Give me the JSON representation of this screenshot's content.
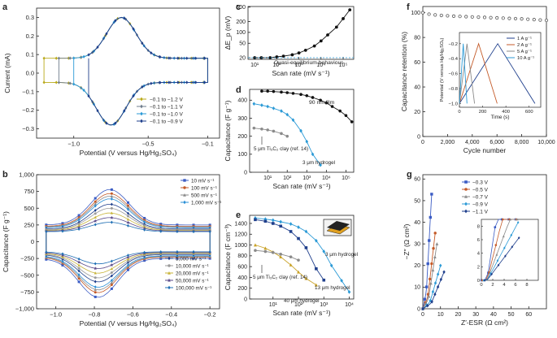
{
  "chart_data": [
    {
      "panel": "a",
      "type": "line",
      "xlabel": "Potential (V versus Hg/Hg₂SO₄)",
      "ylabel": "Current (mA)",
      "xlim": [
        -1.25,
        -0.02
      ],
      "ylim": [
        -0.35,
        0.35
      ],
      "xticks": [
        -1.0,
        -0.5,
        -0.1
      ],
      "xtick_labels": [
        "−1.0",
        "−0.5",
        "−0.1"
      ],
      "yticks": [
        -0.3,
        -0.2,
        -0.1,
        0.0,
        0.1,
        0.2,
        0.3
      ],
      "ytick_labels": [
        "−0.3",
        "−0.2",
        "−0.1",
        "0.0",
        "0.1",
        "0.2",
        "0.3"
      ],
      "legend": "bottom-right",
      "series": [
        {
          "name": "−0.1 to −1.2 V",
          "color": "#b9a91a",
          "marker": "diamond",
          "vmin": -1.2,
          "vmax": -0.1
        },
        {
          "name": "−0.1 to −1.1 V",
          "color": "#6f7d8c",
          "marker": "diamond",
          "vmin": -1.1,
          "vmax": -0.1
        },
        {
          "name": "−0.1 to −1.0 V",
          "color": "#2b9ad6",
          "marker": "diamond",
          "vmin": -1.0,
          "vmax": -0.1
        },
        {
          "name": "−0.1 to −0.9 V",
          "color": "#1f3f8c",
          "marker": "diamond",
          "vmin": -0.9,
          "vmax": -0.1
        }
      ],
      "peak_anodic": {
        "x": -0.68,
        "y": 0.3
      },
      "peak_cathodic": {
        "x": -0.75,
        "y": -0.28
      },
      "plateau_upper": 0.08,
      "plateau_lower": -0.05
    },
    {
      "panel": "b",
      "type": "line",
      "xlabel": "Potential (V versus Hg/Hg₂SO₄)",
      "ylabel": "Capacitance (F g⁻¹)",
      "xlim": [
        -1.1,
        -0.15
      ],
      "ylim": [
        -1000,
        1000
      ],
      "xticks": [
        -1.0,
        -0.8,
        -0.6,
        -0.4,
        -0.2
      ],
      "xtick_labels": [
        "−1.0",
        "−0.8",
        "−0.6",
        "−0.4",
        "−0.2"
      ],
      "yticks": [
        -1000,
        -750,
        -500,
        -250,
        0,
        250,
        500,
        750,
        1000
      ],
      "ytick_labels": [
        "−1,000",
        "−750",
        "−500",
        "−250",
        "0",
        "250",
        "500",
        "750",
        "1,000"
      ],
      "series": [
        {
          "name": "10 mV s⁻¹",
          "color": "#3b5cc4",
          "marker": "square",
          "peak": 780,
          "trough": -830,
          "plateau": 250
        },
        {
          "name": "100 mV s⁻¹",
          "color": "#c45a28",
          "marker": "circle",
          "peak": 720,
          "trough": -760,
          "plateau": 230
        },
        {
          "name": "500 mV s⁻¹",
          "color": "#8a8a8a",
          "marker": "triangle",
          "peak": 680,
          "trough": -720,
          "plateau": 220
        },
        {
          "name": "1,000 mV s⁻¹",
          "color": "#2a8fd6",
          "marker": "diamond",
          "peak": 640,
          "trough": -680,
          "plateau": 210
        },
        {
          "name": "5,000 mV s⁻¹",
          "color": "#1f3f8c",
          "marker": "diamond",
          "peak": 560,
          "trough": -600,
          "plateau": 190
        },
        {
          "name": "10,000 mV s⁻¹",
          "color": "#9a9a9a",
          "marker": "circle",
          "peak": 500,
          "trough": -540,
          "plateau": 180
        },
        {
          "name": "20,000 mV s⁻¹",
          "color": "#c8b43a",
          "marker": "triangle",
          "peak": 430,
          "trough": -470,
          "plateau": 170
        },
        {
          "name": "50,000 mV s⁻¹",
          "color": "#5a4a8a",
          "marker": "star",
          "peak": 360,
          "trough": -400,
          "plateau": 160
        },
        {
          "name": "100,000 mV s⁻¹",
          "color": "#1f6fb4",
          "marker": "diamond",
          "peak": 290,
          "trough": -330,
          "plateau": 150
        }
      ]
    },
    {
      "panel": "c",
      "type": "line",
      "xlabel": "Scan rate (mV s⁻¹)",
      "ylabel": "ΔE_p (mV)",
      "xscale": "log",
      "yscale": "log",
      "xlim": [
        5,
        300000
      ],
      "ylim": [
        18,
        520
      ],
      "xticks": [
        10,
        100,
        1000,
        10000,
        100000
      ],
      "xtick_labels": [
        "10¹",
        "10²",
        "10³",
        "10⁴",
        "10⁵"
      ],
      "yticks": [
        20,
        50,
        100,
        200,
        500
      ],
      "ytick_labels": [
        "20",
        "50",
        "100",
        "200",
        "500"
      ],
      "annotation": "Quasi-equilibrium behaviour",
      "series": [
        {
          "name": "",
          "color": "#111111",
          "marker": "circle",
          "x": [
            10,
            20,
            50,
            100,
            200,
            500,
            1000,
            2000,
            5000,
            10000,
            20000,
            50000,
            100000,
            200000
          ],
          "y": [
            20,
            20,
            20,
            21,
            22,
            24,
            27,
            32,
            42,
            58,
            85,
            140,
            240,
            420
          ]
        }
      ]
    },
    {
      "panel": "d",
      "type": "line",
      "xlabel": "Scan rate (mV s⁻¹)",
      "ylabel": "Capacitance (F g⁻¹)",
      "xscale": "log",
      "xlim": [
        1.2,
        250000
      ],
      "ylim": [
        0,
        460
      ],
      "xticks": [
        10,
        100,
        1000,
        10000,
        100000
      ],
      "xtick_labels": [
        "10¹",
        "10²",
        "10³",
        "10⁴",
        "10⁵"
      ],
      "yticks": [
        0,
        100,
        200,
        300,
        400
      ],
      "ytick_labels": [
        "0",
        "100",
        "200",
        "300",
        "400"
      ],
      "annotations": [
        "90 nm film",
        "5 μm Ti₃C₂ clay (ref. 14)",
        "3 μm hydrogel"
      ],
      "series": [
        {
          "name": "90 nm film",
          "color": "#111111",
          "marker": "circle",
          "x": [
            5,
            10,
            20,
            50,
            100,
            200,
            500,
            1000,
            2000,
            5000,
            10000,
            20000,
            50000,
            100000,
            200000
          ],
          "y": [
            450,
            450,
            448,
            445,
            442,
            438,
            432,
            425,
            415,
            400,
            385,
            365,
            340,
            315,
            280
          ]
        },
        {
          "name": "3 μm hydrogel",
          "color": "#2b9ad6",
          "marker": "diamond",
          "x": [
            2,
            5,
            10,
            20,
            50,
            100,
            200,
            500,
            1000,
            2000,
            5000
          ],
          "y": [
            380,
            372,
            365,
            355,
            340,
            320,
            290,
            230,
            170,
            100,
            40
          ]
        },
        {
          "name": "5 μm Ti₃C₂ clay",
          "color": "#8a8a8a",
          "marker": "circle",
          "x": [
            2,
            5,
            10,
            20,
            50,
            100
          ],
          "y": [
            245,
            240,
            235,
            228,
            215,
            200
          ]
        }
      ]
    },
    {
      "panel": "e",
      "type": "line",
      "xlabel": "Scan rate (mV s⁻¹)",
      "ylabel": "Capacitance (F cm⁻³)",
      "xscale": "log",
      "xlim": [
        1.2,
        15000
      ],
      "ylim": [
        0,
        1550
      ],
      "xticks": [
        10,
        100,
        1000,
        10000
      ],
      "xtick_labels": [
        "10¹",
        "10²",
        "10³",
        "10⁴"
      ],
      "yticks": [
        0,
        200,
        400,
        600,
        800,
        1000,
        1200,
        1400
      ],
      "ytick_labels": [
        "0",
        "200",
        "400",
        "600",
        "800",
        "1000",
        "1200",
        "1400"
      ],
      "annotations": [
        "3 μm hydrogel",
        "13 μm hydrogel",
        "40 μm hydrogel",
        "5 μm Ti₃C₂ clay (ref. 14)"
      ],
      "series": [
        {
          "name": "3 μm hydrogel",
          "color": "#2b9ad6",
          "marker": "diamond",
          "x": [
            2,
            5,
            10,
            20,
            50,
            100,
            200,
            500,
            1000,
            2000,
            5000,
            10000
          ],
          "y": [
            1500,
            1480,
            1460,
            1430,
            1390,
            1330,
            1250,
            1080,
            880,
            620,
            340,
            130
          ]
        },
        {
          "name": "13 μm hydrogel",
          "color": "#1f3f8c",
          "marker": "square",
          "x": [
            2,
            5,
            10,
            20,
            50,
            100,
            200,
            500,
            1000
          ],
          "y": [
            1470,
            1440,
            1400,
            1350,
            1250,
            1120,
            950,
            560,
            350
          ]
        },
        {
          "name": "40 μm hydrogel",
          "color": "#c9a227",
          "marker": "triangle",
          "x": [
            2,
            5,
            10,
            20,
            50,
            100,
            200,
            500
          ],
          "y": [
            1000,
            940,
            870,
            780,
            630,
            500,
            380,
            260
          ]
        },
        {
          "name": "5 μm Ti₃C₂ clay",
          "color": "#8a8a8a",
          "marker": "circle",
          "x": [
            2,
            5,
            10,
            20,
            50,
            100
          ],
          "y": [
            900,
            880,
            860,
            830,
            780,
            720
          ]
        }
      ]
    },
    {
      "panel": "f",
      "type": "scatter",
      "xlabel": "Cycle number",
      "ylabel": "Capacitance retention (%)",
      "xlim": [
        0,
        10000
      ],
      "ylim": [
        0,
        105
      ],
      "xticks": [
        0,
        2000,
        4000,
        6000,
        8000,
        10000
      ],
      "xtick_labels": [
        "0",
        "2,000",
        "4,000",
        "6,000",
        "8,000",
        "10,000"
      ],
      "yticks": [
        0,
        20,
        40,
        60,
        80,
        100
      ],
      "ytick_labels": [
        "0",
        "20",
        "40",
        "60",
        "80",
        "100"
      ],
      "series": [
        {
          "name": "",
          "color": "#555555",
          "marker": "open-circle",
          "x": [
            0,
            500,
            1000,
            1500,
            2000,
            2500,
            3000,
            3500,
            4000,
            4500,
            5000,
            5500,
            6000,
            6500,
            7000,
            7500,
            8000,
            8500,
            9000,
            9500,
            10000
          ],
          "y": [
            100,
            98.8,
            98.2,
            97.8,
            97.5,
            97.2,
            97,
            96.8,
            96.6,
            96.4,
            96.2,
            96,
            95.8,
            95.6,
            95.4,
            95.2,
            95,
            94.7,
            94.4,
            94.1,
            93.8
          ]
        }
      ],
      "inset": {
        "xlabel": "Time (s)",
        "ylabel": "Potential (V versus Hg/Hg₂SO₄)",
        "xlim": [
          0,
          700
        ],
        "ylim": [
          -1.05,
          -0.05
        ],
        "xticks": [
          0,
          200,
          400,
          600
        ],
        "xtick_labels": [
          "0",
          "200",
          "400",
          "600"
        ],
        "yticks": [
          -1.0,
          -0.8,
          -0.6,
          -0.4,
          -0.2
        ],
        "ytick_labels": [
          "−1.0",
          "−0.8",
          "−0.6",
          "−0.4",
          "−0.2"
        ],
        "legend": "top-right",
        "series": [
          {
            "name": "1 A g⁻¹",
            "color": "#1f3f8c",
            "t_charge": 330,
            "t_end": 650
          },
          {
            "name": "2 A g⁻¹",
            "color": "#c45a28",
            "t_charge": 165,
            "t_end": 325
          },
          {
            "name": "5 A g⁻¹",
            "color": "#8a8a8a",
            "t_charge": 65,
            "t_end": 130
          },
          {
            "name": "10 A g⁻¹",
            "color": "#2b9ad6",
            "t_charge": 33,
            "t_end": 65
          }
        ]
      }
    },
    {
      "panel": "g",
      "type": "scatter",
      "xlabel": "Z′-ESR (Ω cm²)",
      "ylabel": "−Z″ (Ω cm²)",
      "xlim": [
        0,
        70
      ],
      "ylim": [
        0,
        62
      ],
      "xticks": [
        0,
        10,
        20,
        30,
        40,
        50,
        60
      ],
      "xtick_labels": [
        "0",
        "10",
        "20",
        "30",
        "40",
        "50",
        "60"
      ],
      "yticks": [
        0,
        10,
        20,
        30,
        40,
        50,
        60
      ],
      "ytick_labels": [
        "0",
        "10",
        "20",
        "30",
        "40",
        "50",
        "60"
      ],
      "legend": "top-left",
      "series": [
        {
          "name": "−0.3 V",
          "color": "#3b5cc4",
          "marker": "square",
          "end": [
            5,
            53
          ]
        },
        {
          "name": "−0.5 V",
          "color": "#c45a28",
          "marker": "circle",
          "end": [
            7,
            35
          ]
        },
        {
          "name": "−0.7 V",
          "color": "#8a8a8a",
          "marker": "triangle",
          "end": [
            8,
            30
          ]
        },
        {
          "name": "−0.9 V",
          "color": "#2b9ad6",
          "marker": "diamond",
          "end": [
            10,
            20
          ]
        },
        {
          "name": "−1.1 V",
          "color": "#1f3f8c",
          "marker": "diamond",
          "end": [
            12,
            17
          ]
        }
      ],
      "inset": {
        "xlim": [
          0,
          10
        ],
        "ylim": [
          0,
          9
        ],
        "xticks": [
          0,
          2,
          4,
          6,
          8
        ],
        "xtick_labels": [
          "0",
          "2",
          "4",
          "6",
          "8"
        ],
        "yticks": [
          0,
          2,
          4,
          6,
          8
        ],
        "ytick_labels": [
          "0",
          "2",
          "4",
          "6",
          "8"
        ]
      }
    }
  ]
}
